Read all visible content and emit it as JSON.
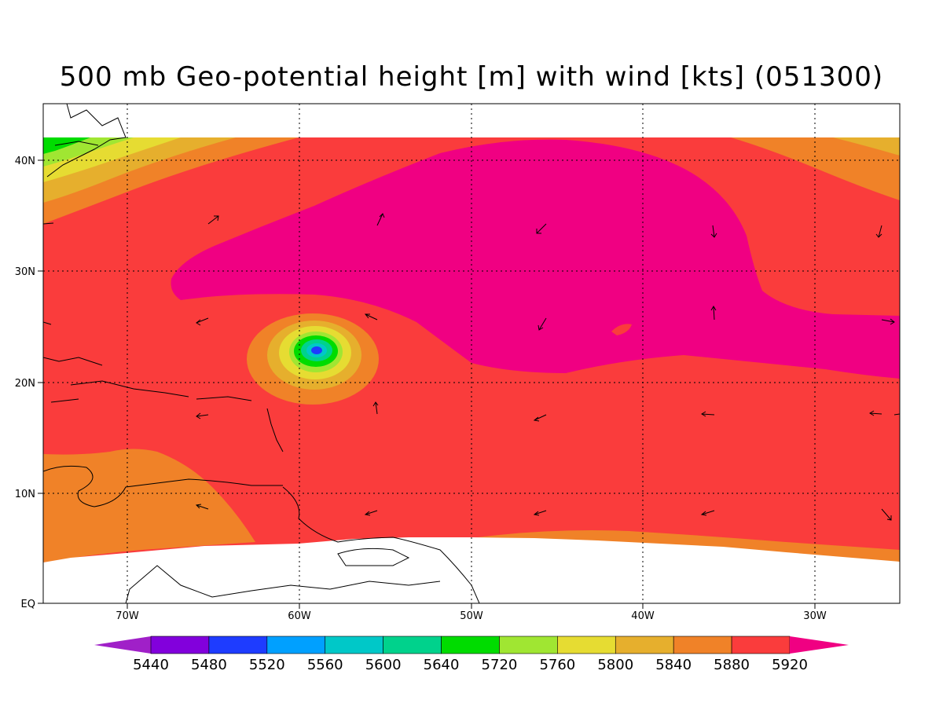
{
  "title": "500 mb Geo-potential height [m] with wind [kts] (051300)",
  "map": {
    "lon_ticks": [
      {
        "lon": -70,
        "label": "70W"
      },
      {
        "lon": -60,
        "label": "60W"
      },
      {
        "lon": -50,
        "label": "50W"
      },
      {
        "lon": -40,
        "label": "40W"
      },
      {
        "lon": -30,
        "label": "30W"
      }
    ],
    "lat_ticks": [
      {
        "lat": 0,
        "label": "EQ"
      },
      {
        "lat": 10,
        "label": "10N"
      },
      {
        "lat": 20,
        "label": "20N"
      },
      {
        "lat": 30,
        "label": "30N"
      },
      {
        "lat": 40,
        "label": "40N"
      }
    ],
    "lon_range": [
      -75,
      -25
    ],
    "lat_range": [
      0,
      45
    ]
  },
  "colorbar": {
    "labels": [
      "5440",
      "5480",
      "5520",
      "5560",
      "5600",
      "5640",
      "5720",
      "5760",
      "5800",
      "5840",
      "5880",
      "5920"
    ],
    "colors": [
      "#a020c8",
      "#8200dc",
      "#1e3cff",
      "#00a0ff",
      "#00c8c8",
      "#00d28c",
      "#00dc00",
      "#a0e632",
      "#e6dc32",
      "#e6af2d",
      "#f08228",
      "#fa3c3c",
      "#f00082"
    ]
  },
  "colors": {
    "c5920": "#f00082",
    "c5880": "#fa3c3c",
    "c5840": "#f08228",
    "c5800": "#e6af2d",
    "c5760": "#e6dc32",
    "c5720": "#a0e632",
    "c5640": "#00dc00",
    "c5600": "#00d28c",
    "c5560": "#00c8c8",
    "c5520": "#1e3cff"
  }
}
